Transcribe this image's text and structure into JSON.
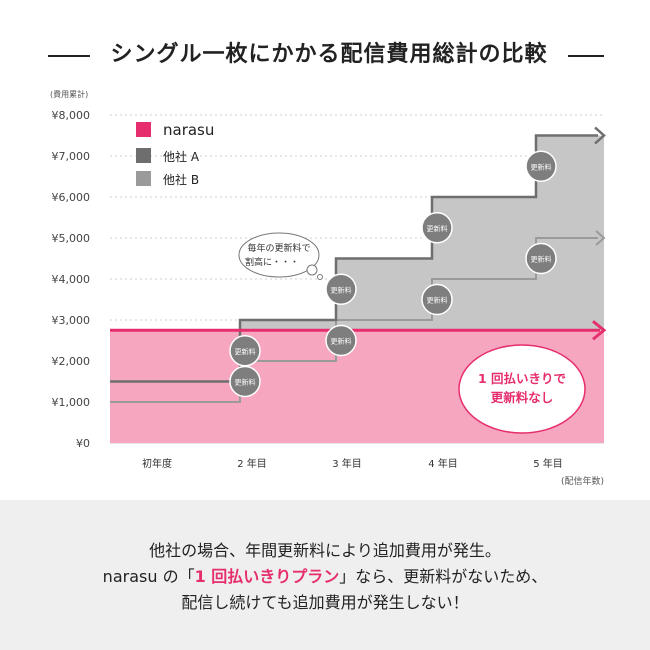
{
  "title": "シングル一枚にかかる配信費用総計の比較",
  "colors": {
    "narasu": "#e62e6e",
    "narasu_fill": "#f7a6c0",
    "company_a": "#6e6e6e",
    "company_b": "#9a9a9a",
    "area_gray": "#c6c6c6",
    "badge": "#7e7e7e",
    "footer_bg": "#efefef"
  },
  "chart_data": {
    "type": "line",
    "step": true,
    "ylabel": "(費用累計)",
    "xlabel": "(配信年数)",
    "categories": [
      "初年度",
      "2 年目",
      "3 年目",
      "4 年目",
      "5 年目"
    ],
    "y_ticks": [
      "¥0",
      "¥1,000",
      "¥2,000",
      "¥3,000",
      "¥4,000",
      "¥5,000",
      "¥6,000",
      "¥7,000",
      "¥8,000"
    ],
    "ylim": [
      0,
      8000
    ],
    "grid": true,
    "legend_position": "top-left",
    "series": [
      {
        "name": "narasu",
        "color": "#e62e6e",
        "values": [
          2750,
          2750,
          2750,
          2750,
          2750
        ]
      },
      {
        "name": "他社 A",
        "color": "#6e6e6e",
        "values": [
          1500,
          3000,
          4500,
          6000,
          7500
        ]
      },
      {
        "name": "他社 B",
        "color": "#9a9a9a",
        "values": [
          1000,
          2000,
          3000,
          4000,
          5000
        ]
      }
    ],
    "renewal_badge": "更新料",
    "annotation_bubble": [
      "毎年の更新料で",
      "割高に・・・"
    ],
    "callout": [
      "1 回払いきりで",
      "更新料なし"
    ]
  },
  "footer": {
    "line1": "他社の場合、年間更新料により追加費用が発生。",
    "line2_a": "narasu の「",
    "line2_highlight": "1 回払いきりプラン",
    "line2_b": "」なら、更新料がないため、",
    "line3": "配信し続けても追加費用が発生しない！"
  }
}
